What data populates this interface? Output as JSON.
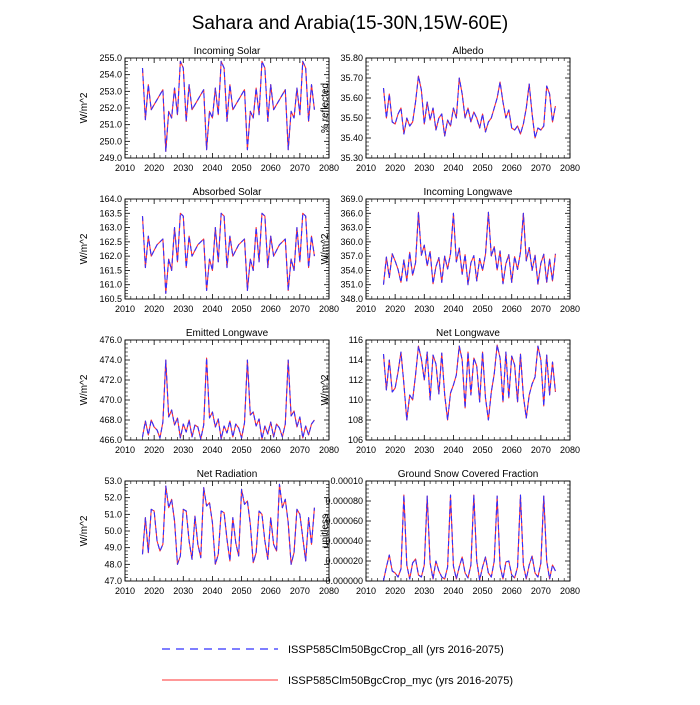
{
  "title": "Sahara and Arabia(15-30N,15W-60E)",
  "colors": {
    "series_all": "#3030ff",
    "series_myc": "#ff3030",
    "axis": "#000000"
  },
  "legend": [
    {
      "label": "ISSP585Clm50BgcCrop_all (yrs 2016-2075)",
      "style": "dashed",
      "color": "#3030ff"
    },
    {
      "label": "ISSP585Clm50BgcCrop_myc (yrs 2016-2075)",
      "style": "solid",
      "color": "#ff3030"
    }
  ],
  "chart_data": [
    {
      "type": "line",
      "title": "Incoming Solar",
      "ylabel": "W/m^2",
      "xlim": [
        2010,
        2080
      ],
      "ylim": [
        249,
        255
      ],
      "xticks": [
        "2010",
        "2020",
        "2030",
        "2040",
        "2050",
        "2060",
        "2070",
        "2080"
      ],
      "yticks": [
        "249.0",
        "250.0",
        "251.0",
        "252.0",
        "253.0",
        "254.0",
        "255.0"
      ],
      "x_start": 2016,
      "series": [
        {
          "values": [
            254.4,
            251.3,
            253.4,
            251.9,
            252.2,
            252.5,
            252.8,
            253.1,
            249.4,
            251.8,
            251.4,
            253.2,
            251.6,
            254.8,
            254.4,
            251.2,
            253.4,
            251.9,
            252.2,
            252.5,
            252.8,
            253.1,
            249.5,
            251.8,
            251.4,
            253.2,
            251.6,
            254.8,
            254.4,
            251.2,
            253.4,
            251.9,
            252.2,
            252.5,
            252.8,
            253.1,
            249.5,
            251.8,
            251.4,
            253.2,
            251.6,
            254.8,
            254.4,
            251.2,
            253.4,
            251.9,
            252.2,
            252.5,
            252.8,
            253.1,
            249.5,
            251.8,
            251.4,
            253.2,
            251.6,
            254.8,
            254.4,
            251.2,
            253.4,
            251.9
          ]
        }
      ]
    },
    {
      "type": "line",
      "title": "Albedo",
      "ylabel": "% reflected",
      "xlim": [
        2010,
        2080
      ],
      "ylim": [
        35.3,
        35.8
      ],
      "xticks": [
        "2010",
        "2020",
        "2030",
        "2040",
        "2050",
        "2060",
        "2070",
        "2080"
      ],
      "yticks": [
        "35.30",
        "35.40",
        "35.50",
        "35.60",
        "35.70",
        "35.80"
      ],
      "x_start": 2016,
      "series": [
        {
          "values": [
            35.65,
            35.5,
            35.62,
            35.48,
            35.47,
            35.52,
            35.55,
            35.42,
            35.5,
            35.46,
            35.48,
            35.58,
            35.71,
            35.64,
            35.47,
            35.58,
            35.49,
            35.55,
            35.44,
            35.5,
            35.52,
            35.41,
            35.49,
            35.46,
            35.55,
            35.5,
            35.7,
            35.62,
            35.5,
            35.55,
            35.48,
            35.53,
            35.5,
            35.45,
            35.52,
            35.43,
            35.48,
            35.5,
            35.55,
            35.6,
            35.68,
            35.58,
            35.5,
            35.54,
            35.45,
            35.44,
            35.46,
            35.42,
            35.47,
            35.55,
            35.67,
            35.52,
            35.4,
            35.45,
            35.44,
            35.46,
            35.66,
            35.62,
            35.48,
            35.56
          ]
        }
      ]
    },
    {
      "type": "line",
      "title": "Absorbed Solar",
      "ylabel": "W/m^2",
      "xlim": [
        2010,
        2080
      ],
      "ylim": [
        160.5,
        164
      ],
      "xticks": [
        "2010",
        "2020",
        "2030",
        "2040",
        "2050",
        "2060",
        "2070",
        "2080"
      ],
      "yticks": [
        "160.5",
        "161.0",
        "161.5",
        "162.0",
        "162.5",
        "163.0",
        "163.5",
        "164.0"
      ],
      "x_start": 2016,
      "series": [
        {
          "values": [
            163.4,
            161.6,
            162.7,
            162.0,
            162.2,
            162.4,
            162.5,
            162.6,
            160.7,
            161.9,
            161.5,
            163.0,
            161.8,
            163.5,
            163.4,
            161.6,
            162.7,
            162.0,
            162.2,
            162.4,
            162.5,
            162.6,
            160.8,
            161.9,
            161.5,
            163.0,
            161.8,
            163.5,
            163.4,
            161.6,
            162.7,
            162.0,
            162.2,
            162.4,
            162.5,
            162.6,
            160.8,
            161.9,
            161.5,
            163.0,
            161.8,
            163.5,
            163.4,
            161.6,
            162.7,
            162.0,
            162.2,
            162.4,
            162.5,
            162.6,
            160.8,
            161.9,
            161.5,
            163.0,
            161.8,
            163.5,
            163.4,
            161.6,
            162.7,
            162.0
          ]
        }
      ]
    },
    {
      "type": "line",
      "title": "Incoming Longwave",
      "ylabel": "W/m^2",
      "xlim": [
        2010,
        2080
      ],
      "ylim": [
        348,
        369
      ],
      "xticks": [
        "2010",
        "2020",
        "2030",
        "2040",
        "2050",
        "2060",
        "2070",
        "2080"
      ],
      "yticks": [
        "348.0",
        "351.0",
        "354.0",
        "357.0",
        "360.0",
        "363.0",
        "366.0",
        "369.0"
      ],
      "x_start": 2016,
      "series": [
        {
          "values": [
            351.0,
            356.8,
            352.5,
            357.5,
            356.0,
            354.2,
            351.5,
            356.2,
            351.8,
            357.8,
            353.0,
            355.6,
            366.2,
            357.2,
            359.3,
            355.0,
            358.0,
            351.2,
            354.8,
            356.7,
            351.5,
            357.0,
            354.3,
            357.5,
            366.0,
            355.8,
            358.7,
            353.2,
            357.3,
            351.0,
            355.6,
            357.1,
            351.8,
            356.5,
            354.0,
            357.4,
            366.2,
            357.0,
            359.0,
            354.1,
            358.1,
            351.2,
            355.4,
            357.3,
            351.5,
            356.9,
            354.2,
            357.8,
            366.0,
            356.0,
            358.8,
            354.0,
            357.2,
            351.1,
            355.5,
            357.4,
            351.5,
            356.4,
            351.8,
            357.5
          ]
        }
      ]
    },
    {
      "type": "line",
      "title": "Emitted Longwave",
      "ylabel": "W/m^2",
      "xlim": [
        2010,
        2080
      ],
      "ylim": [
        466,
        476
      ],
      "xticks": [
        "2010",
        "2020",
        "2030",
        "2040",
        "2050",
        "2060",
        "2070",
        "2080"
      ],
      "yticks": [
        "466.0",
        "468.0",
        "470.0",
        "472.0",
        "474.0",
        "476.0"
      ],
      "x_start": 2016,
      "series": [
        {
          "values": [
            466.3,
            467.9,
            466.5,
            468.0,
            467.3,
            467.0,
            466.2,
            467.8,
            474.0,
            468.3,
            469.0,
            467.5,
            468.2,
            466.2,
            467.6,
            466.8,
            468.0,
            466.3,
            467.5,
            467.3,
            466.1,
            467.5,
            474.2,
            468.2,
            468.8,
            467.3,
            468.1,
            466.1,
            467.4,
            466.7,
            467.9,
            466.3,
            467.6,
            467.2,
            466.2,
            467.7,
            474.0,
            468.5,
            468.8,
            467.4,
            468.1,
            466.1,
            467.4,
            466.6,
            467.8,
            466.3,
            467.6,
            467.2,
            466.3,
            467.6,
            474.0,
            468.4,
            468.9,
            467.3,
            468.3,
            466.2,
            467.4,
            466.5,
            467.6,
            468.0
          ]
        }
      ]
    },
    {
      "type": "line",
      "title": "Net Longwave",
      "ylabel": "W/m^2",
      "xlim": [
        2010,
        2080
      ],
      "ylim": [
        106,
        116
      ],
      "xticks": [
        "2010",
        "2020",
        "2030",
        "2040",
        "2050",
        "2060",
        "2070",
        "2080"
      ],
      "yticks": [
        "106",
        "108",
        "110",
        "112",
        "114",
        "116"
      ],
      "x_start": 2016,
      "series": [
        {
          "values": [
            114.6,
            111.0,
            114.0,
            110.8,
            111.2,
            112.8,
            114.8,
            111.6,
            108.0,
            110.5,
            110.0,
            112.5,
            115.4,
            114.1,
            112.0,
            114.8,
            110.0,
            114.5,
            113.6,
            110.6,
            114.7,
            110.5,
            108.0,
            110.7,
            111.5,
            112.5,
            115.4,
            114.0,
            109.2,
            114.8,
            110.5,
            114.2,
            113.4,
            109.8,
            114.8,
            110.2,
            108.0,
            110.8,
            112.6,
            115.5,
            114.2,
            109.8,
            114.8,
            110.2,
            114.4,
            113.5,
            109.8,
            114.6,
            110.4,
            108.2,
            110.5,
            111.6,
            112.3,
            115.4,
            114.0,
            109.4,
            114.5,
            110.5,
            113.8,
            110.8
          ]
        }
      ]
    },
    {
      "type": "line",
      "title": "Net Radiation",
      "ylabel": "W/m^2",
      "xlim": [
        2010,
        2080
      ],
      "ylim": [
        47,
        53
      ],
      "xticks": [
        "2010",
        "2020",
        "2030",
        "2040",
        "2050",
        "2060",
        "2070",
        "2080"
      ],
      "yticks": [
        "47.0",
        "48.0",
        "49.0",
        "50.0",
        "51.0",
        "52.0",
        "53.0"
      ],
      "x_start": 2016,
      "series": [
        {
          "values": [
            48.6,
            50.8,
            48.7,
            51.3,
            51.2,
            49.4,
            48.8,
            49.2,
            52.7,
            51.4,
            51.9,
            50.6,
            48.0,
            48.5,
            51.3,
            51.2,
            49.4,
            48.3,
            50.9,
            49.2,
            48.4,
            52.6,
            51.5,
            51.7,
            50.5,
            48.0,
            48.6,
            51.2,
            51.1,
            49.5,
            48.2,
            50.8,
            49.3,
            48.5,
            52.5,
            51.6,
            51.8,
            50.4,
            48.1,
            48.7,
            51.2,
            51.0,
            49.4,
            48.3,
            50.8,
            49.2,
            48.8,
            52.8,
            51.4,
            51.9,
            50.5,
            48.0,
            48.7,
            51.3,
            51.0,
            49.6,
            48.2,
            50.8,
            49.2,
            51.4
          ]
        }
      ]
    },
    {
      "type": "line",
      "title": "Ground Snow Covered Fraction",
      "ylabel": "unitless",
      "xlim": [
        2010,
        2080
      ],
      "ylim": [
        0,
        0.0001
      ],
      "xticks": [
        "2010",
        "2020",
        "2030",
        "2040",
        "2050",
        "2060",
        "2070",
        "2080"
      ],
      "yticks": [
        "0.000000",
        "0.000020",
        "0.000040",
        "0.000060",
        "0.000080",
        "0.00010"
      ],
      "x_start": 2016,
      "series": [
        {
          "values": [
            2e-07,
            1.4e-05,
            2.6e-05,
            1e-05,
            8e-06,
            4e-06,
            1.2e-05,
            8.6e-05,
            1.6e-05,
            2e-06,
            1.8e-05,
            2.2e-05,
            6e-06,
            4e-06,
            1.6e-05,
            8.5e-05,
            1.8e-05,
            2e-06,
            2e-05,
            1e-05,
            4e-06,
            2e-06,
            1.4e-05,
            8.6e-05,
            1.5e-05,
            2e-06,
            1.4e-05,
            2.4e-05,
            8e-06,
            3e-06,
            1.6e-05,
            8.6e-05,
            2e-05,
            1e-06,
            1.4e-05,
            2.4e-05,
            8e-06,
            4e-06,
            2e-05,
            8.5e-05,
            1.5e-05,
            2e-06,
            1.9e-05,
            2e-05,
            6e-06,
            3e-06,
            1.4e-05,
            8.6e-05,
            1.6e-05,
            2e-06,
            1.6e-05,
            2.5e-05,
            8e-06,
            4e-06,
            1.8e-05,
            8.5e-05,
            2e-05,
            2e-06,
            1.6e-05,
            1e-05
          ]
        }
      ]
    }
  ]
}
